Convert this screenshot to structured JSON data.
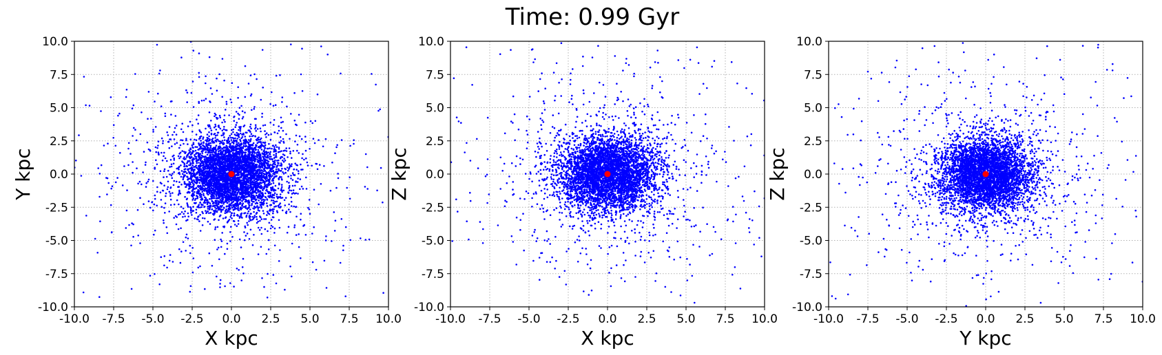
{
  "figure": {
    "suptitle": "Time: 0.99 Gyr",
    "colors": {
      "particles": "#0000ff",
      "center": "#ff0000",
      "grid": "#b0b0b0"
    }
  },
  "chart_data": [
    {
      "type": "scatter",
      "title": "",
      "xlabel": "X kpc",
      "ylabel": "Y kpc",
      "xlim": [
        -10,
        10
      ],
      "ylim": [
        -10,
        10
      ],
      "xticks": [
        -10.0,
        -7.5,
        -5.0,
        -2.5,
        0.0,
        2.5,
        5.0,
        7.5,
        10.0
      ],
      "yticks": [
        -10.0,
        -7.5,
        -5.0,
        -2.5,
        0.0,
        2.5,
        5.0,
        7.5,
        10.0
      ],
      "grid": true,
      "grid_style": "dotted",
      "particle_distribution": {
        "count": 5000,
        "core_sigma_kpc": [
          1.5,
          1.4
        ],
        "halo_fraction": 0.3,
        "halo_scale_kpc": 3.2,
        "seed": 11
      },
      "center_marker": {
        "x": 0.0,
        "y": 0.0
      }
    },
    {
      "type": "scatter",
      "title": "",
      "xlabel": "X kpc",
      "ylabel": "Z kpc",
      "xlim": [
        -10,
        10
      ],
      "ylim": [
        -10,
        10
      ],
      "xticks": [
        -10.0,
        -7.5,
        -5.0,
        -2.5,
        0.0,
        2.5,
        5.0,
        7.5,
        10.0
      ],
      "yticks": [
        -10.0,
        -7.5,
        -5.0,
        -2.5,
        0.0,
        2.5,
        5.0,
        7.5,
        10.0
      ],
      "grid": true,
      "grid_style": "dotted",
      "particle_distribution": {
        "count": 5000,
        "core_sigma_kpc": [
          1.5,
          1.35
        ],
        "halo_fraction": 0.3,
        "halo_scale_kpc": 3.2,
        "seed": 23
      },
      "center_marker": {
        "x": 0.0,
        "y": 0.0
      }
    },
    {
      "type": "scatter",
      "title": "",
      "xlabel": "Y kpc",
      "ylabel": "Z kpc",
      "xlim": [
        -10,
        10
      ],
      "ylim": [
        -10,
        10
      ],
      "xticks": [
        -10.0,
        -7.5,
        -5.0,
        -2.5,
        0.0,
        2.5,
        5.0,
        7.5,
        10.0
      ],
      "yticks": [
        -10.0,
        -7.5,
        -5.0,
        -2.5,
        0.0,
        2.5,
        5.0,
        7.5,
        10.0
      ],
      "grid": true,
      "grid_style": "dotted",
      "particle_distribution": {
        "count": 5000,
        "core_sigma_kpc": [
          1.4,
          1.35
        ],
        "halo_fraction": 0.3,
        "halo_scale_kpc": 3.2,
        "seed": 37
      },
      "center_marker": {
        "x": 0.0,
        "y": 0.0
      }
    }
  ]
}
